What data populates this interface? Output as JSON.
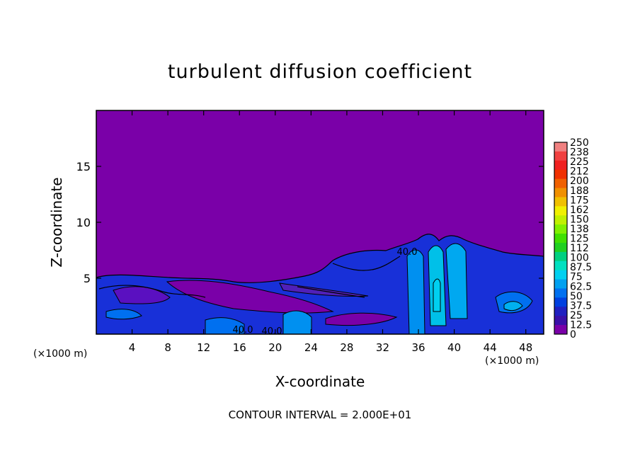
{
  "chart_data": {
    "type": "heatmap",
    "title": "turbulent diffusion coefficient",
    "xlabel": "X-coordinate",
    "ylabel": "Z-coordinate",
    "x_unit_label": "(×1000 m)",
    "x_unit_label_right": "(×1000 m)",
    "xlim": [
      0,
      50
    ],
    "ylim": [
      0,
      20
    ],
    "x_ticks": [
      "4",
      "8",
      "12",
      "16",
      "20",
      "24",
      "28",
      "32",
      "36",
      "40",
      "44",
      "48"
    ],
    "x_tick_values": [
      4,
      8,
      12,
      16,
      20,
      24,
      28,
      32,
      36,
      40,
      44,
      48
    ],
    "y_ticks": [
      "5",
      "10",
      "15"
    ],
    "y_tick_values": [
      5,
      10,
      15
    ],
    "colorbar_labels": [
      "250",
      "238",
      "225",
      "212",
      "200",
      "188",
      "175",
      "162",
      "150",
      "138",
      "125",
      "112",
      "100",
      "87.5",
      "75",
      "62.5",
      "50",
      "37.5",
      "25",
      "12.5",
      "0"
    ],
    "colorbar_colors": [
      "#f08080",
      "#f04040",
      "#f02020",
      "#f03000",
      "#f06000",
      "#f09000",
      "#f0c000",
      "#f0f000",
      "#c0f000",
      "#80f000",
      "#40e000",
      "#20d020",
      "#00d080",
      "#00e0c0",
      "#00d0f0",
      "#00a0f0",
      "#0070f0",
      "#0040e0",
      "#2020c0",
      "#3a10a8",
      "#7a00a8"
    ],
    "background_value_color": "#7a00a8",
    "contour_labels": [
      "40.0",
      "40.0",
      "40.0"
    ],
    "contour_note": "CONTOUR INTERVAL = 2.000E+01"
  }
}
